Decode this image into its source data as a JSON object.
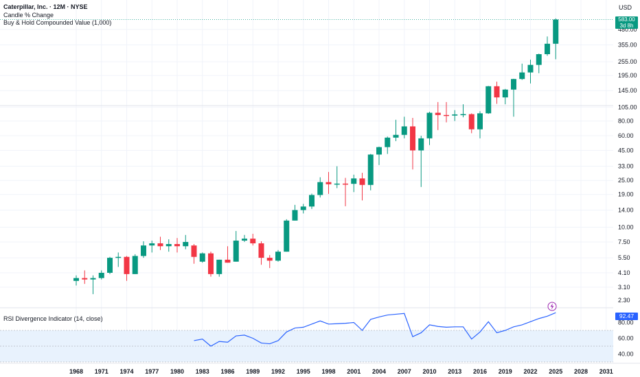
{
  "header": {
    "title": "Caterpillar, Inc. · 12M · NYSE",
    "indicator1": "Candle % Change",
    "indicator2": "Buy & Hold Compounded Value (1,000)",
    "currency": "USD"
  },
  "price_badge": {
    "value": "583.00",
    "countdown": "3d 8h"
  },
  "rsi": {
    "label": "RSI Divergence Indicator (14, close)",
    "last_value": "92.47"
  },
  "colors": {
    "up": "#089981",
    "down": "#f23645",
    "rsi_line": "#2962ff",
    "rsi_band": "#e8f2fd",
    "grid": "#f0f3fa",
    "flash_icon": "#9c27b0"
  },
  "chart_data": [
    {
      "type": "candlestick",
      "scale": "log",
      "y_ticks": [
        3.1,
        4.1,
        5.5,
        7.5,
        10.0,
        14.0,
        19.0,
        25.0,
        33.0,
        45.0,
        60.0,
        80.0,
        105.0,
        145.0,
        195.0,
        255.0,
        355.0,
        480.0
      ],
      "y_tick_labels": [
        "3.10",
        "4.10",
        "5.50",
        "7.50",
        "10.00",
        "14.00",
        "19.00",
        "25.00",
        "33.00",
        "45.00",
        "60.00",
        "80.00",
        "105.00",
        "145.00",
        "195.00",
        "255.00",
        "355.00",
        "480.00"
      ],
      "x_tick_labels": [
        "1968",
        "1971",
        "1974",
        "1977",
        "1980",
        "1983",
        "1986",
        "1989",
        "1992",
        "1995",
        "1998",
        "2001",
        "2004",
        "2007",
        "2010",
        "2013",
        "2016",
        "2019",
        "2022",
        "2025",
        "2028",
        "2031"
      ],
      "candles": [
        {
          "year": 1968,
          "o": 3.5,
          "h": 3.9,
          "l": 3.2,
          "c": 3.7
        },
        {
          "year": 1969,
          "o": 3.7,
          "h": 4.3,
          "l": 3.3,
          "c": 3.6
        },
        {
          "year": 1970,
          "o": 3.6,
          "h": 3.9,
          "l": 2.7,
          "c": 3.7
        },
        {
          "year": 1971,
          "o": 3.7,
          "h": 4.3,
          "l": 3.6,
          "c": 4.1
        },
        {
          "year": 1972,
          "o": 4.1,
          "h": 5.6,
          "l": 4.0,
          "c": 5.5
        },
        {
          "year": 1973,
          "o": 5.5,
          "h": 6.1,
          "l": 4.6,
          "c": 5.6
        },
        {
          "year": 1974,
          "o": 5.6,
          "h": 5.7,
          "l": 3.5,
          "c": 4.0
        },
        {
          "year": 1975,
          "o": 4.0,
          "h": 5.9,
          "l": 4.0,
          "c": 5.7
        },
        {
          "year": 1976,
          "o": 5.7,
          "h": 7.6,
          "l": 5.5,
          "c": 7.0
        },
        {
          "year": 1977,
          "o": 7.0,
          "h": 7.7,
          "l": 6.1,
          "c": 7.3
        },
        {
          "year": 1978,
          "o": 7.3,
          "h": 8.3,
          "l": 6.4,
          "c": 6.9
        },
        {
          "year": 1979,
          "o": 6.9,
          "h": 7.9,
          "l": 6.2,
          "c": 7.2
        },
        {
          "year": 1980,
          "o": 7.2,
          "h": 8.1,
          "l": 6.1,
          "c": 6.9
        },
        {
          "year": 1981,
          "o": 6.9,
          "h": 8.6,
          "l": 6.5,
          "c": 7.5
        },
        {
          "year": 1982,
          "o": 7.0,
          "h": 7.2,
          "l": 4.9,
          "c": 5.6
        },
        {
          "year": 1983,
          "o": 5.1,
          "h": 6.1,
          "l": 5.0,
          "c": 6.0
        },
        {
          "year": 1984,
          "o": 6.0,
          "h": 6.2,
          "l": 3.8,
          "c": 4.0
        },
        {
          "year": 1985,
          "o": 4.0,
          "h": 5.3,
          "l": 3.8,
          "c": 5.3
        },
        {
          "year": 1986,
          "o": 5.3,
          "h": 6.9,
          "l": 5.0,
          "c": 5.0
        },
        {
          "year": 1987,
          "o": 5.1,
          "h": 9.3,
          "l": 5.1,
          "c": 7.7
        },
        {
          "year": 1988,
          "o": 7.7,
          "h": 8.6,
          "l": 7.5,
          "c": 8.0
        },
        {
          "year": 1989,
          "o": 8.0,
          "h": 8.8,
          "l": 7.0,
          "c": 7.3
        },
        {
          "year": 1990,
          "o": 7.3,
          "h": 7.6,
          "l": 4.8,
          "c": 5.5
        },
        {
          "year": 1991,
          "o": 5.5,
          "h": 5.8,
          "l": 4.5,
          "c": 5.2
        },
        {
          "year": 1992,
          "o": 5.2,
          "h": 6.4,
          "l": 5.1,
          "c": 6.2
        },
        {
          "year": 1993,
          "o": 6.2,
          "h": 11.7,
          "l": 6.2,
          "c": 11.4
        },
        {
          "year": 1994,
          "o": 11.4,
          "h": 15.5,
          "l": 11.4,
          "c": 14.0
        },
        {
          "year": 1995,
          "o": 14.0,
          "h": 15.8,
          "l": 13.1,
          "c": 15.0
        },
        {
          "year": 1996,
          "o": 15.0,
          "h": 19.3,
          "l": 14.3,
          "c": 18.8
        },
        {
          "year": 1997,
          "o": 18.8,
          "h": 26.6,
          "l": 17.9,
          "c": 24.2
        },
        {
          "year": 1998,
          "o": 24.2,
          "h": 29.5,
          "l": 19.2,
          "c": 23.2
        },
        {
          "year": 1999,
          "o": 23.2,
          "h": 33.0,
          "l": 21.5,
          "c": 23.5
        },
        {
          "year": 2000,
          "o": 23.5,
          "h": 26.3,
          "l": 15.1,
          "c": 23.4
        },
        {
          "year": 2001,
          "o": 23.4,
          "h": 28.0,
          "l": 19.9,
          "c": 26.0
        },
        {
          "year": 2002,
          "o": 26.0,
          "h": 29.0,
          "l": 16.9,
          "c": 22.9
        },
        {
          "year": 2003,
          "o": 22.9,
          "h": 42.0,
          "l": 20.6,
          "c": 41.5
        },
        {
          "year": 2004,
          "o": 41.5,
          "h": 48.5,
          "l": 33.8,
          "c": 48.0
        },
        {
          "year": 2005,
          "o": 48.0,
          "h": 59.0,
          "l": 42.0,
          "c": 57.8
        },
        {
          "year": 2006,
          "o": 57.8,
          "h": 82.0,
          "l": 54.0,
          "c": 61.0
        },
        {
          "year": 2007,
          "o": 61.0,
          "h": 87.0,
          "l": 57.0,
          "c": 72.0
        },
        {
          "year": 2008,
          "o": 72.0,
          "h": 85.0,
          "l": 31.0,
          "c": 45.0
        },
        {
          "year": 2009,
          "o": 45.0,
          "h": 60.0,
          "l": 22.0,
          "c": 57.0
        },
        {
          "year": 2010,
          "o": 57.0,
          "h": 96.0,
          "l": 50.0,
          "c": 94.0
        },
        {
          "year": 2011,
          "o": 94.0,
          "h": 116.0,
          "l": 67.0,
          "c": 90.0
        },
        {
          "year": 2012,
          "o": 90.0,
          "h": 116.0,
          "l": 78.0,
          "c": 89.0
        },
        {
          "year": 2013,
          "o": 89.0,
          "h": 99.0,
          "l": 80.0,
          "c": 91.0
        },
        {
          "year": 2014,
          "o": 91.0,
          "h": 111.0,
          "l": 86.0,
          "c": 91.5
        },
        {
          "year": 2015,
          "o": 91.5,
          "h": 93.0,
          "l": 63.0,
          "c": 68.0
        },
        {
          "year": 2016,
          "o": 68.0,
          "h": 97.0,
          "l": 57.0,
          "c": 93.0
        },
        {
          "year": 2017,
          "o": 93.0,
          "h": 159.0,
          "l": 92.0,
          "c": 158.0
        },
        {
          "year": 2018,
          "o": 158.0,
          "h": 173.0,
          "l": 112.0,
          "c": 127.0
        },
        {
          "year": 2019,
          "o": 127.0,
          "h": 150.0,
          "l": 111.0,
          "c": 148.0
        },
        {
          "year": 2020,
          "o": 148.0,
          "h": 183.0,
          "l": 87.0,
          "c": 182.0
        },
        {
          "year": 2021,
          "o": 182.0,
          "h": 246.0,
          "l": 179.0,
          "c": 207.0
        },
        {
          "year": 2022,
          "o": 207.0,
          "h": 266.0,
          "l": 167.0,
          "c": 240.0
        },
        {
          "year": 2023,
          "o": 240.0,
          "h": 299.0,
          "l": 204.0,
          "c": 296.0
        },
        {
          "year": 2024,
          "o": 296.0,
          "h": 418.0,
          "l": 287.0,
          "c": 363.0
        },
        {
          "year": 2025,
          "o": 363.0,
          "h": 596.0,
          "l": 268.0,
          "c": 583.0
        }
      ]
    },
    {
      "type": "line",
      "name": "RSI Divergence Indicator (14, close)",
      "y_ticks": [
        40.0,
        60.0,
        80.0
      ],
      "y_tick_labels": [
        "40.00",
        "60.00",
        "80.00"
      ],
      "x": [
        1982,
        1983,
        1984,
        1985,
        1986,
        1987,
        1988,
        1989,
        1990,
        1991,
        1992,
        1993,
        1994,
        1995,
        1996,
        1997,
        1998,
        1999,
        2000,
        2001,
        2002,
        2003,
        2004,
        2005,
        2006,
        2007,
        2008,
        2009,
        2010,
        2011,
        2012,
        2013,
        2014,
        2015,
        2016,
        2017,
        2018,
        2019,
        2020,
        2021,
        2022,
        2023,
        2024,
        2025
      ],
      "values": [
        57,
        59,
        50,
        56,
        55,
        63,
        64,
        60,
        54,
        53,
        57,
        68,
        73,
        74,
        78,
        82,
        78,
        78.5,
        79,
        80,
        70,
        84,
        87,
        89.5,
        90.5,
        91.5,
        62,
        67,
        77,
        75,
        74,
        74.5,
        74.5,
        59,
        68,
        81,
        67,
        70,
        74.5,
        77,
        81,
        85,
        88,
        92.47
      ]
    }
  ]
}
